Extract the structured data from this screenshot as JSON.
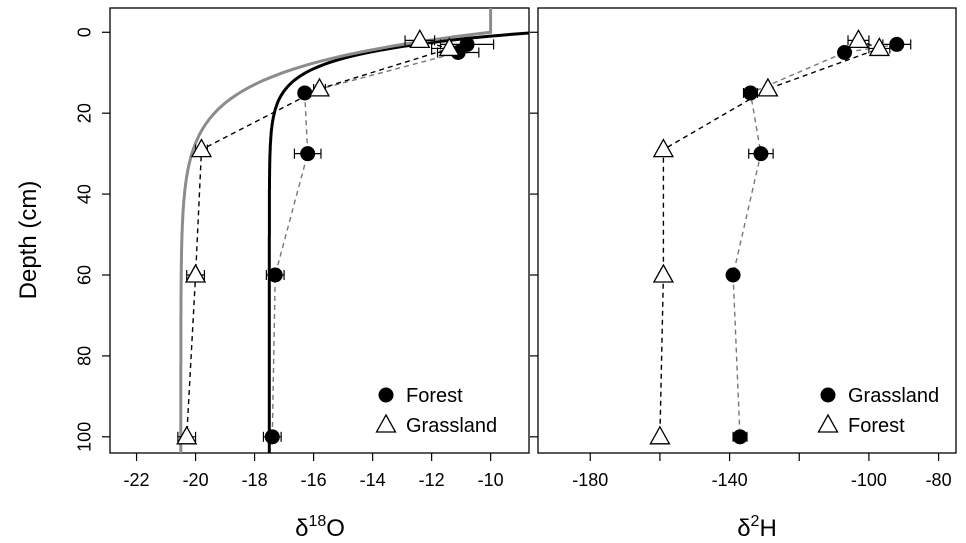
{
  "shared": {
    "ylabel": "Depth (cm)",
    "ylim": [
      104,
      -6
    ],
    "yticks": [
      0,
      20,
      40,
      60,
      80,
      100
    ],
    "colors": {
      "forest_dash": "#000000",
      "grass_dash": "#777777",
      "grass_curve": "#8c8c8c",
      "forest_curve": "#000000"
    }
  },
  "chart_data": [
    {
      "type": "scatter",
      "xlabel": "δ18O",
      "xlabel_base": "δ",
      "xlabel_sup": "18",
      "xlabel_tail": "O",
      "xlim": [
        -22.9,
        -8.7
      ],
      "xticks": [
        -22,
        -20,
        -18,
        -16,
        -14,
        -12,
        -10
      ],
      "legend": {
        "position": "bottom-right",
        "entries": [
          {
            "label": "Forest",
            "marker": "filled-circle"
          },
          {
            "label": "Grassland",
            "marker": "open-triangle"
          }
        ]
      },
      "series": [
        {
          "name": "Forest",
          "marker": "filled-circle",
          "line": "dashed",
          "line_color": "#777777",
          "points": [
            {
              "depth": 3,
              "x": -10.8,
              "err": 0.9
            },
            {
              "depth": 5,
              "x": -11.1,
              "err": 0.7
            },
            {
              "depth": 15,
              "x": -16.3,
              "err": 0
            },
            {
              "depth": 30,
              "x": -16.2,
              "err": 0.45
            },
            {
              "depth": 60,
              "x": -17.3,
              "err": 0.3
            },
            {
              "depth": 100,
              "x": -17.4,
              "err": 0.3
            }
          ]
        },
        {
          "name": "Grassland",
          "marker": "open-triangle",
          "line": "dashed",
          "line_color": "#000000",
          "points": [
            {
              "depth": 2,
              "x": -12.4,
              "err": 0.5
            },
            {
              "depth": 4,
              "x": -11.4,
              "err": 0.6
            },
            {
              "depth": 14,
              "x": -15.8,
              "err": 0.2
            },
            {
              "depth": 29,
              "x": -19.8,
              "err": 0.2
            },
            {
              "depth": 60,
              "x": -20.0,
              "err": 0.3
            },
            {
              "depth": 100,
              "x": -20.3,
              "err": 0.3
            }
          ]
        }
      ],
      "fitted_curves": [
        {
          "color": "#000000",
          "asymptote": -17.5,
          "surface": -8.4,
          "decay_cm": 5
        },
        {
          "color": "#8c8c8c",
          "asymptote": -20.5,
          "surface": -10.0,
          "decay_cm": 9
        }
      ]
    },
    {
      "type": "scatter",
      "xlabel": "δ2H",
      "xlabel_base": "δ",
      "xlabel_sup": "2",
      "xlabel_tail": "H",
      "xlim": [
        -195,
        -75
      ],
      "xticks": [
        -180,
        -140,
        -100,
        -80
      ],
      "legend": {
        "position": "bottom-right",
        "entries": [
          {
            "label": "Grassland",
            "marker": "filled-circle"
          },
          {
            "label": "Forest",
            "marker": "open-triangle"
          }
        ]
      },
      "series": [
        {
          "name": "Grassland",
          "marker": "filled-circle",
          "line": "dashed",
          "line_color": "#777777",
          "points": [
            {
              "depth": 3,
              "x": -92,
              "err": 4
            },
            {
              "depth": 5,
              "x": -107,
              "err": 0
            },
            {
              "depth": 15,
              "x": -134,
              "err": 2
            },
            {
              "depth": 30,
              "x": -131,
              "err": 3.5
            },
            {
              "depth": 60,
              "x": -139,
              "err": 0
            },
            {
              "depth": 100,
              "x": -137,
              "err": 2
            }
          ]
        },
        {
          "name": "Forest",
          "marker": "open-triangle",
          "line": "dashed",
          "line_color": "#000000",
          "points": [
            {
              "depth": 2,
              "x": -103,
              "err": 3
            },
            {
              "depth": 4,
              "x": -97,
              "err": 3
            },
            {
              "depth": 14,
              "x": -129,
              "err": 0
            },
            {
              "depth": 29,
              "x": -159,
              "err": 0
            },
            {
              "depth": 60,
              "x": -159,
              "err": 0
            },
            {
              "depth": 100,
              "x": -160,
              "err": 0
            }
          ]
        }
      ],
      "fitted_curves": []
    }
  ]
}
